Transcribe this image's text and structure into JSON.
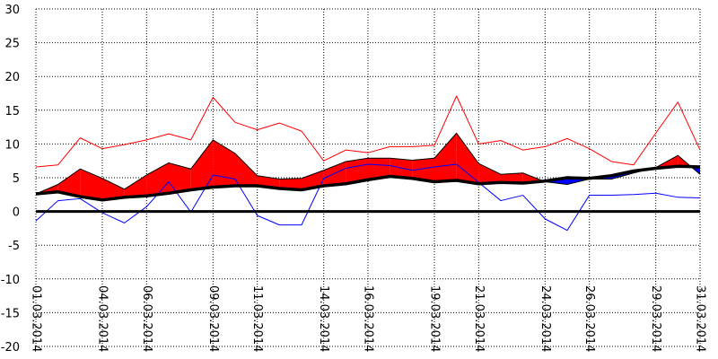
{
  "chart_data": {
    "type": "line",
    "title": "",
    "xlabel": "",
    "ylabel": "",
    "ylim": [
      -20,
      30
    ],
    "yticks": [
      30,
      25,
      20,
      15,
      10,
      5,
      0,
      -5,
      -10,
      -15,
      -20
    ],
    "grid": true,
    "legend": "none",
    "x_tick_labels": [
      "01.03.2014",
      "04.03.2014",
      "06.03.2014",
      "09.03.2014",
      "11.03.2014",
      "14.03.2014",
      "16.03.2014",
      "19.03.2014",
      "21.03.2014",
      "24.03.2014",
      "26.03.2014",
      "29.03.2014",
      "31.03.2014"
    ],
    "x_tick_days": [
      1,
      4,
      6,
      9,
      11,
      14,
      16,
      19,
      21,
      24,
      26,
      29,
      31
    ],
    "days": [
      1,
      2,
      3,
      4,
      5,
      6,
      7,
      8,
      9,
      10,
      11,
      12,
      13,
      14,
      15,
      16,
      17,
      18,
      19,
      20,
      21,
      22,
      23,
      24,
      25,
      26,
      27,
      28,
      29,
      30,
      31
    ],
    "series": [
      {
        "role": "max",
        "color": "#ff0000",
        "values": [
          6.6,
          6.9,
          10.9,
          9.3,
          9.9,
          10.6,
          11.5,
          10.6,
          16.9,
          13.2,
          12.1,
          13.1,
          11.9,
          7.5,
          9.1,
          8.7,
          9.6,
          9.6,
          9.8,
          17.1,
          10.0,
          10.5,
          9.1,
          9.6,
          10.8,
          9.3,
          7.4,
          6.9,
          11.6,
          16.2,
          9.1
        ]
      },
      {
        "role": "mean",
        "color": "#ff0000",
        "values": [
          2.6,
          4.0,
          6.3,
          4.9,
          3.3,
          5.4,
          7.2,
          6.3,
          10.6,
          8.6,
          5.3,
          4.8,
          4.9,
          6.1,
          7.4,
          7.9,
          7.9,
          7.6,
          7.9,
          11.6,
          7.1,
          5.5,
          5.7,
          4.4,
          4.0,
          4.8,
          4.8,
          5.7,
          6.5,
          8.3,
          5.5
        ]
      },
      {
        "role": "normal",
        "color": "#000000",
        "values": [
          2.6,
          2.9,
          2.2,
          1.7,
          2.1,
          2.3,
          2.7,
          3.2,
          3.6,
          3.8,
          3.8,
          3.4,
          3.2,
          3.8,
          4.1,
          4.7,
          5.2,
          4.9,
          4.4,
          4.6,
          4.1,
          4.3,
          4.2,
          4.5,
          5.0,
          4.9,
          5.3,
          6.0,
          6.4,
          6.7,
          6.6
        ]
      },
      {
        "role": "min",
        "color": "#0000ff",
        "values": [
          -1.4,
          1.6,
          1.9,
          -0.2,
          -1.7,
          0.7,
          4.4,
          -0.1,
          5.4,
          4.8,
          -0.6,
          -2.0,
          -2.0,
          4.9,
          6.4,
          7.0,
          6.8,
          6.1,
          6.6,
          7.0,
          4.3,
          1.6,
          2.4,
          -1.1,
          -2.8,
          2.4,
          2.4,
          2.5,
          2.7,
          2.1,
          2.0
        ]
      }
    ]
  }
}
